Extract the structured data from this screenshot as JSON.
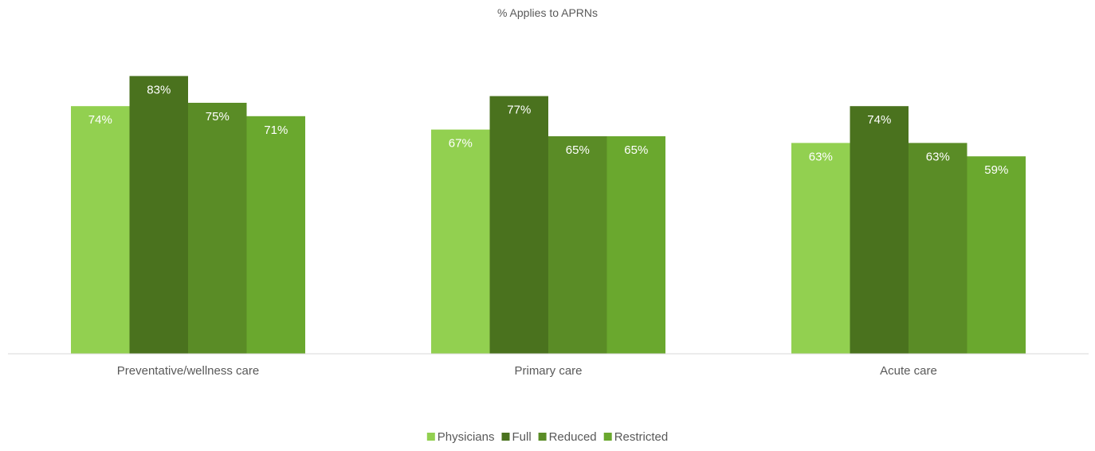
{
  "chart_data": {
    "type": "bar",
    "title": "% Applies to APRNs",
    "categories": [
      "Preventative/wellness care",
      "Primary care",
      "Acute care"
    ],
    "series": [
      {
        "name": "Physicians",
        "values": [
          74,
          67,
          63
        ],
        "labels": [
          "74%",
          "67%",
          "63%"
        ],
        "color": "#92D050"
      },
      {
        "name": "Full",
        "values": [
          83,
          77,
          74
        ],
        "labels": [
          "83%",
          "77%",
          "74%"
        ],
        "color": "#4A721E"
      },
      {
        "name": "Reduced",
        "values": [
          75,
          65,
          63
        ],
        "labels": [
          "75%",
          "65%",
          "63%"
        ],
        "color": "#5A8C26"
      },
      {
        "name": "Restricted",
        "values": [
          71,
          65,
          59
        ],
        "labels": [
          "71%",
          "65%",
          "59%"
        ],
        "color": "#6AA82E"
      }
    ],
    "ylim": [
      0,
      100
    ],
    "grid": false,
    "legend_position": "bottom",
    "axis_color": "#D9D9D9"
  }
}
